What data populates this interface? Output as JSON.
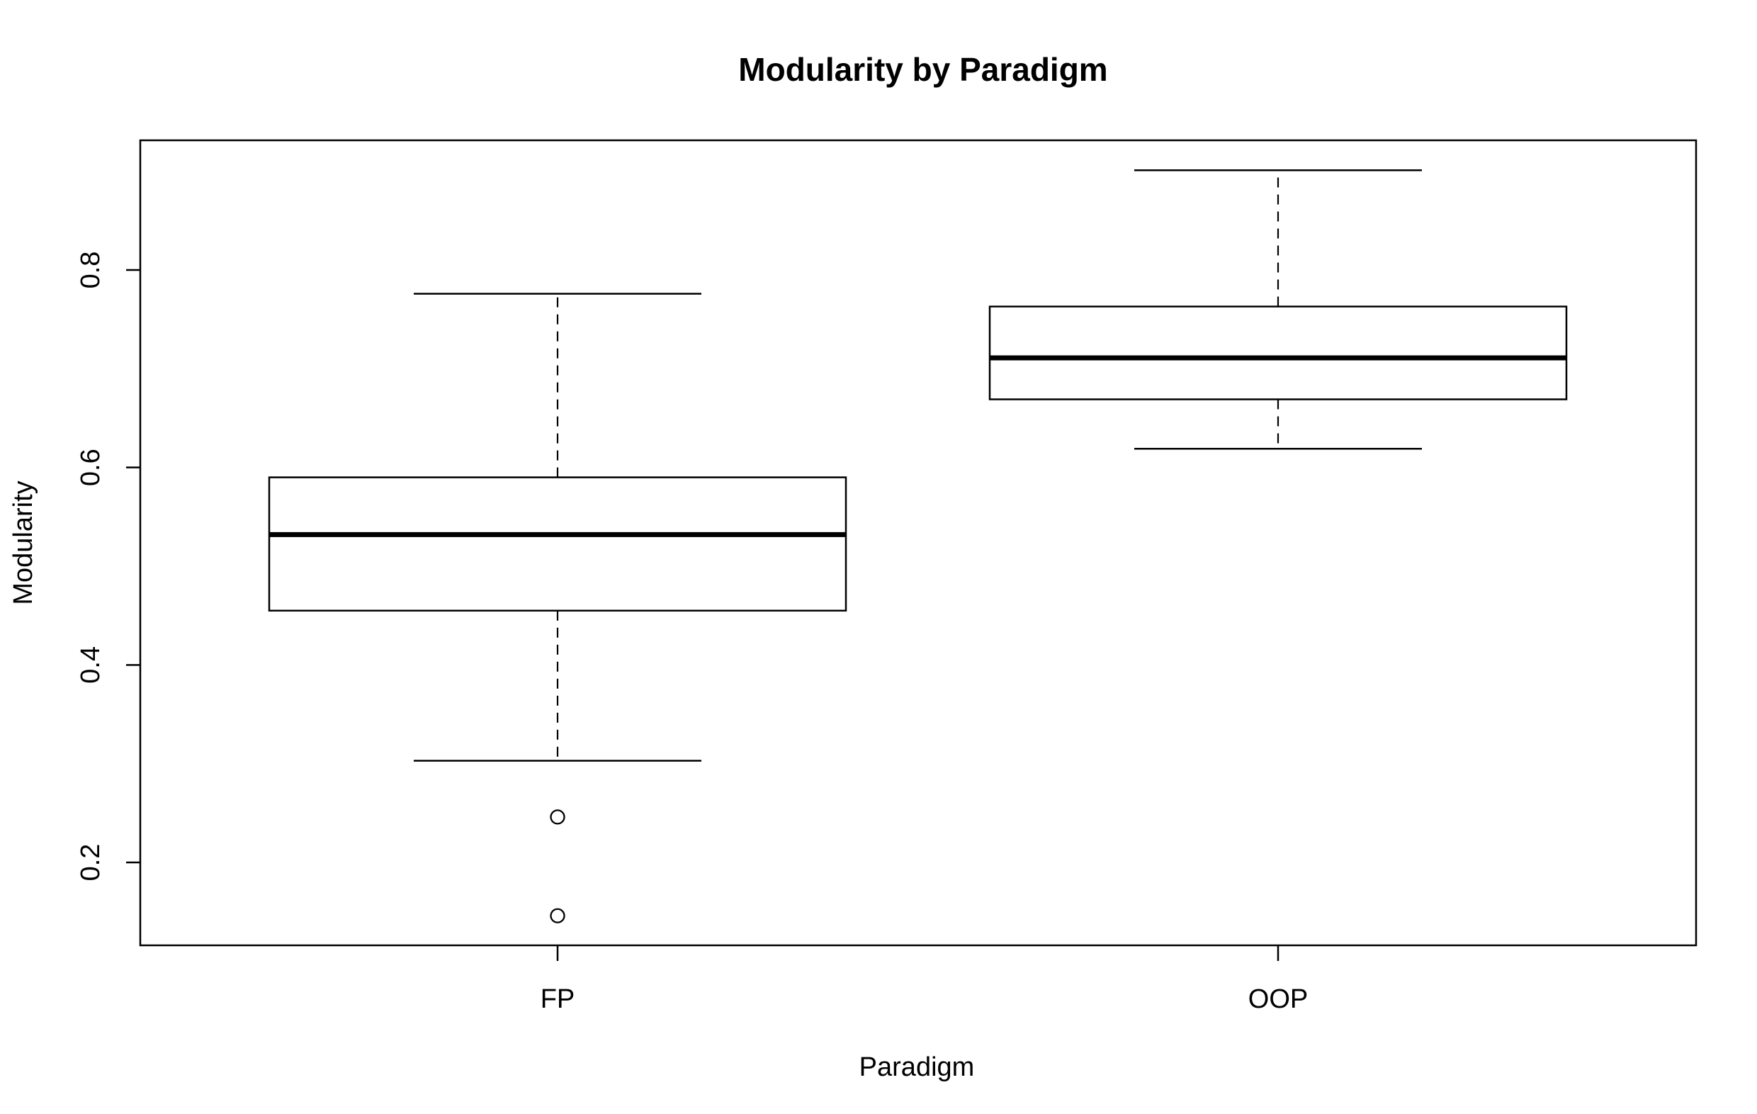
{
  "chart_data": {
    "type": "boxplot",
    "title": "Modularity by Paradigm",
    "xlabel": "Paradigm",
    "ylabel": "Modularity",
    "categories": [
      "FP",
      "OOP"
    ],
    "ylim": [
      0.12,
      0.93
    ],
    "yticks": [
      0.2,
      0.4,
      0.6,
      0.8
    ],
    "ytick_labels": [
      "0.2",
      "0.4",
      "0.6",
      "0.8"
    ],
    "grid": false,
    "legend": "none",
    "colors": {
      "stroke": "#000000",
      "fill": "#ffffff",
      "background": "#ffffff"
    },
    "boxes": [
      {
        "category": "FP",
        "whisker_low": 0.303,
        "q1": 0.455,
        "median": 0.532,
        "q3": 0.59,
        "whisker_high": 0.776,
        "outliers": [
          0.246,
          0.146
        ]
      },
      {
        "category": "OOP",
        "whisker_low": 0.619,
        "q1": 0.669,
        "median": 0.711,
        "q3": 0.763,
        "whisker_high": 0.901,
        "outliers": []
      }
    ]
  }
}
